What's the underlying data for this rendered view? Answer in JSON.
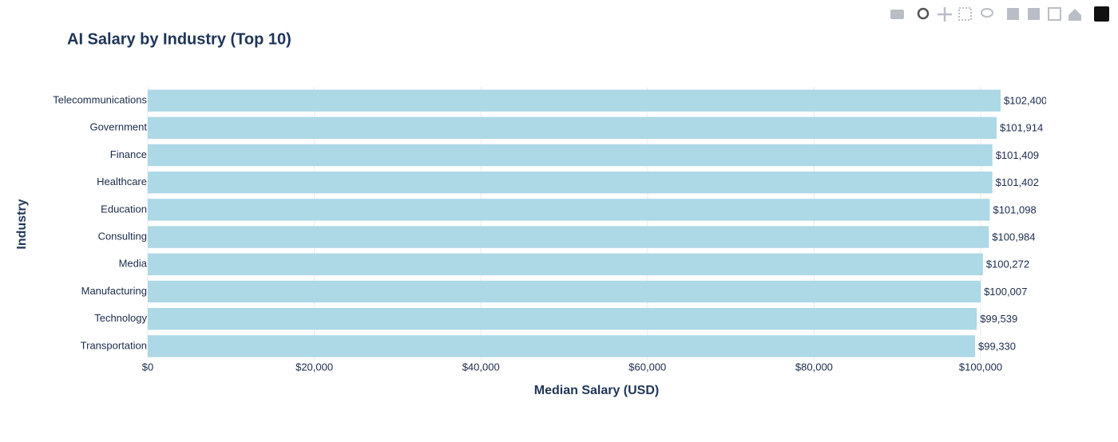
{
  "chart_data": {
    "type": "bar",
    "orientation": "horizontal",
    "title": "AI Salary by Industry (Top 10)",
    "x_label": "Median Salary (USD)",
    "y_label": "Industry",
    "categories": [
      "Telecommunications",
      "Government",
      "Finance",
      "Healthcare",
      "Education",
      "Consulting",
      "Media",
      "Manufacturing",
      "Technology",
      "Transportation"
    ],
    "values": [
      102400,
      101914,
      101409,
      101402,
      101098,
      100984,
      100272,
      100007,
      99539,
      99330
    ],
    "value_labels": [
      "$102,400",
      "$101,914",
      "$101,409",
      "$101,402",
      "$101,098",
      "$100,984",
      "$100,272",
      "$100,007",
      "$99,539",
      "$99,330"
    ],
    "color": "#add8e6",
    "xlim": [
      0,
      107860
    ],
    "xticks": [
      {
        "value": 0,
        "label": "$0"
      },
      {
        "value": 20000,
        "label": "$20,000"
      },
      {
        "value": 40000,
        "label": "$40,000"
      },
      {
        "value": 60000,
        "label": "$60,000"
      },
      {
        "value": 80000,
        "label": "$80,000"
      },
      {
        "value": 100000,
        "label": "$100,000"
      }
    ],
    "grid": true
  }
}
